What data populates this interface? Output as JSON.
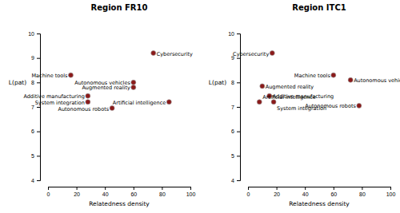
{
  "chart_data": [
    {
      "type": "scatter",
      "title": "Region FR10",
      "x_label": "Relatedness density",
      "y_label": "L(pat)",
      "point_labels": [
        "Cybersecurity",
        "Machine tools",
        "Autonomous vehicles",
        "Augmented reality",
        "Additive manufacturing",
        "System integration",
        "Autonomous robots",
        "Artificial intelligence"
      ],
      "x": [
        74,
        16,
        60,
        60,
        28,
        28,
        45,
        85
      ],
      "values": [
        9.2,
        8.3,
        8.0,
        7.8,
        7.45,
        7.2,
        6.95,
        7.2
      ],
      "color": "#8b1a1a",
      "xlim": [
        0,
        100
      ],
      "ylim": [
        4,
        10
      ],
      "xticks": [
        0,
        20,
        40,
        60,
        80,
        100
      ],
      "yticks": [
        4,
        5,
        6,
        7,
        8,
        9,
        10
      ]
    },
    {
      "type": "scatter",
      "title": "Region ITC1",
      "x_label": "Relatedness density",
      "y_label": "L(pat)",
      "point_labels": [
        "Cybersecurity",
        "Machine tools",
        "Autonomous vehicles",
        "Augmented reality",
        "Additive manufacturing",
        "Artificial intelligence",
        "System integration",
        "Autonomous robots"
      ],
      "x": [
        17,
        60,
        72,
        10,
        15,
        8,
        18,
        78
      ],
      "values": [
        9.2,
        8.3,
        8.1,
        7.85,
        7.45,
        7.2,
        7.2,
        7.05
      ],
      "color": "#8b1a1a",
      "xlim": [
        0,
        100
      ],
      "ylim": [
        4,
        10
      ],
      "xticks": [
        0,
        20,
        40,
        60,
        80,
        100
      ],
      "yticks": [
        4,
        5,
        6,
        7,
        8,
        9,
        10
      ]
    }
  ]
}
